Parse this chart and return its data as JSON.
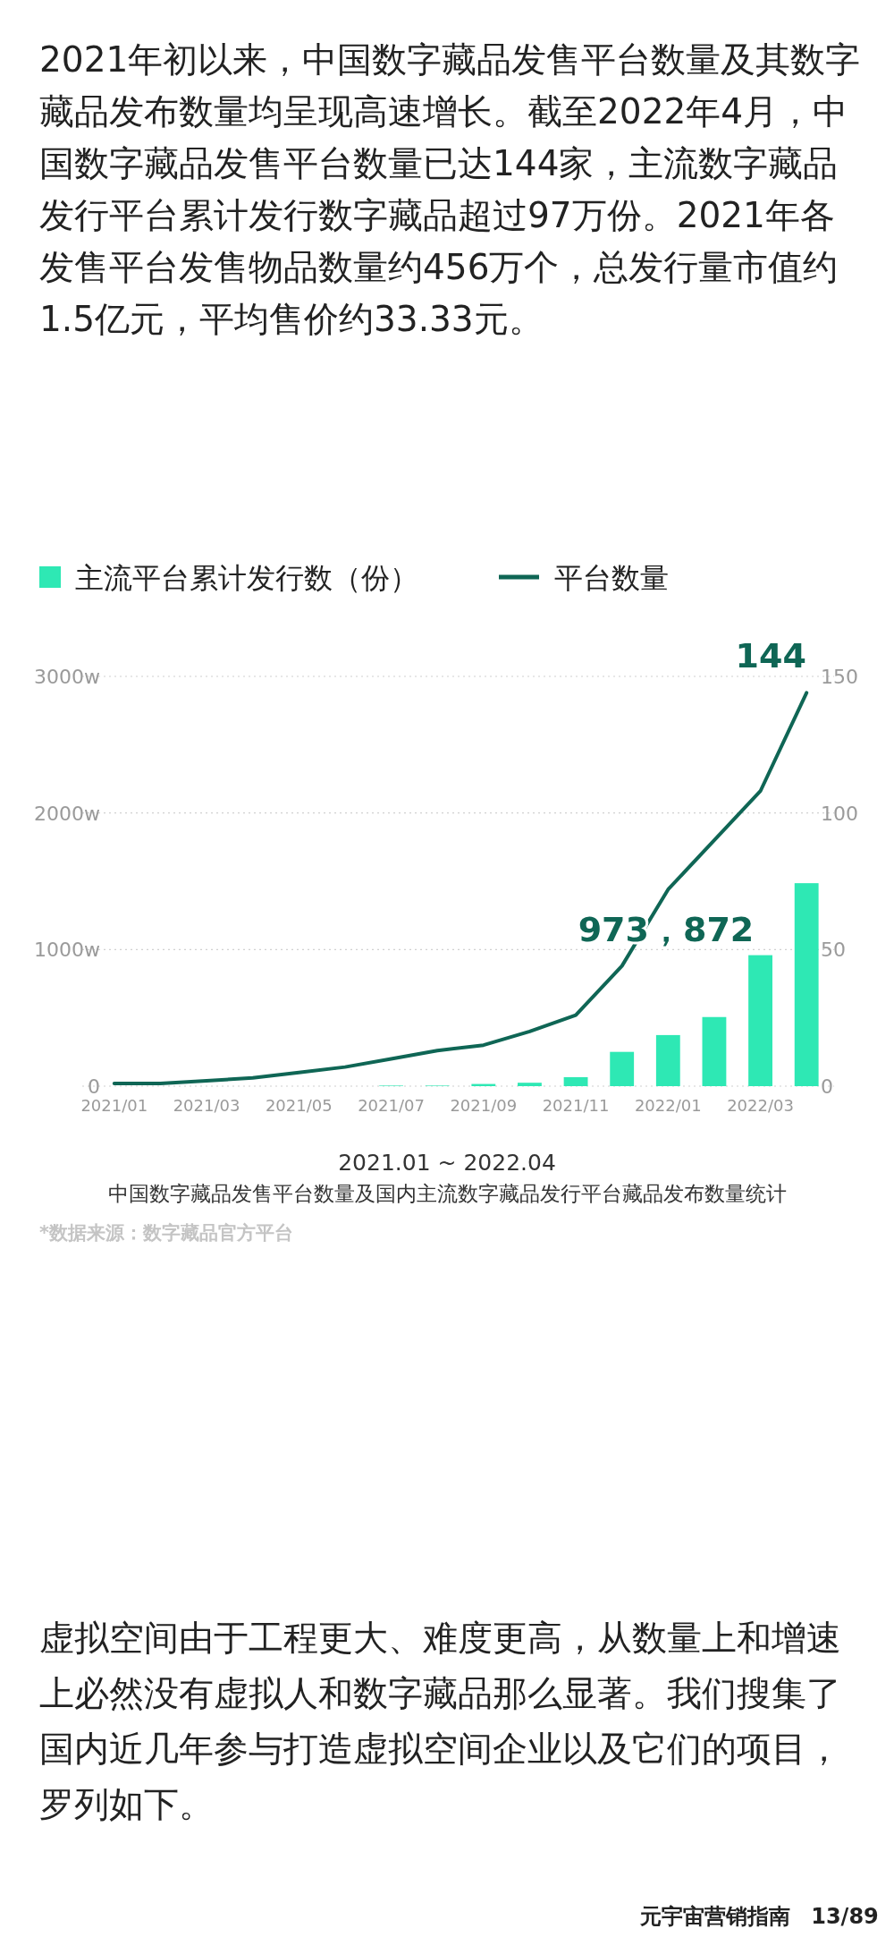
{
  "chart_data": {
    "type": "bar",
    "title": "中国数字藏品发售平台数量及国内主流数字藏品发行平台藏品发布数量统计",
    "subtitle": "2021.01 ~ 2022.04",
    "categories": [
      "2021/01",
      null,
      "2021/03",
      null,
      "2021/05",
      null,
      "2021/07",
      null,
      "2021/09",
      null,
      "2021/11",
      null,
      "2022/01",
      null,
      "2022/03",
      null
    ],
    "series": [
      {
        "name": "主流平台累计发行数（份）",
        "color": "#2ee8b4",
        "values": [
          0,
          0,
          0,
          0,
          0,
          0,
          4,
          4,
          16,
          25,
          66,
          251,
          374,
          506,
          959,
          1486
        ]
      },
      {
        "name": "平台数量",
        "type": "line",
        "axis": "y2",
        "color": "#0f6655",
        "values": [
          1,
          1,
          2,
          3,
          5,
          7,
          10,
          13,
          15,
          20,
          26,
          44,
          72,
          90,
          108,
          144
        ],
        "value_labels": [
          null,
          null,
          null,
          null,
          null,
          null,
          null,
          null,
          null,
          null,
          null,
          null,
          null,
          null,
          null,
          "144"
        ]
      }
    ],
    "ylim": [
      0,
      3000
    ],
    "yticks": [
      0,
      {
        "value": 1000,
        "label": "1000w"
      },
      {
        "value": 2000,
        "label": "2000w"
      },
      {
        "value": 3000,
        "label": "3000w"
      }
    ],
    "y2lim": [
      0,
      150
    ],
    "y2ticks": [
      0,
      50,
      100,
      150
    ],
    "grid": "y",
    "legend": "top",
    "annotations": [
      "2021年初以来，中国数字藏品发售平台数量及其数字藏品发布数量均呈现高速增长。截至2022年4月，中国数字藏品发售平台数量已达144家，主流数字藏品发行平台累计发行数字藏品超过97万份。2021年各发售平台发售物品数量约456万个，总发行量市值约1.5亿元，平均售价约33.33元。",
      "973，872",
      "*数据来源：数字藏品官方平台",
      "虚拟空间由于工程更大、难度更高，从数量上和增速上必然没有虚拟人和数字藏品那么显著。我们搜集了国内近几年参与打造虚拟空间企业以及它们的项目，罗列如下。",
      "元宇宙营销指南",
      "13/89"
    ]
  }
}
